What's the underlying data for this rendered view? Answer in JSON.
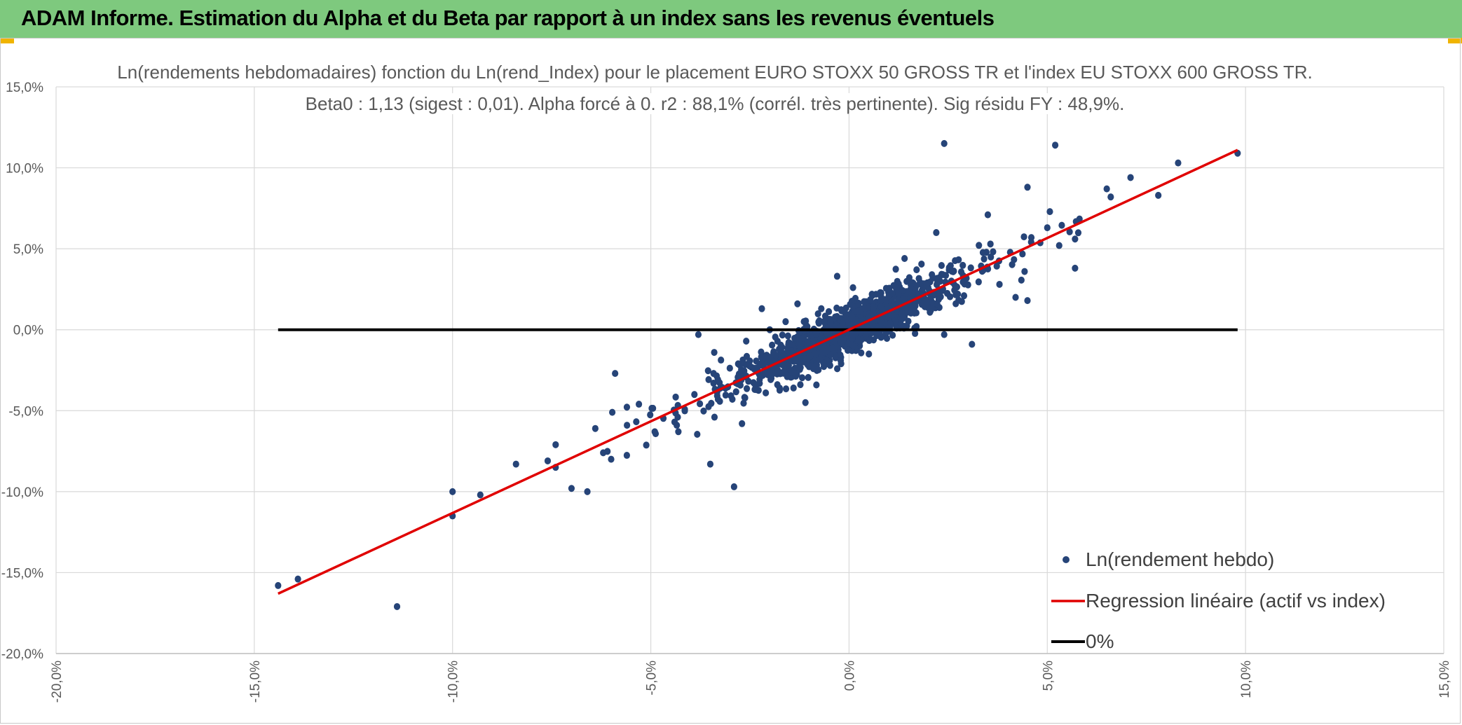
{
  "header": {
    "title": "ADAM Informe. Estimation du Alpha et du Beta par rapport à un index sans les revenus éventuels"
  },
  "colors": {
    "banner": "#7ec97e",
    "points": "#264478",
    "regression": "#e00000",
    "zero_line": "#000000",
    "grid": "#d9d9d9"
  },
  "chart_data": {
    "type": "scatter",
    "title": "Ln(rendements hebdomadaires) fonction du Ln(rend_Index) pour le placement EURO STOXX 50 GROSS TR et l'index EU STOXX 600 GROSS TR.",
    "subtitle": "Beta0 : 1,13 (sigest : 0,01). Alpha forcé à 0. r2 : 88,1% (corrél. très pertinente). Sig résidu FY : 48,9%.",
    "xlim": [
      -20,
      15
    ],
    "ylim": [
      -20,
      15
    ],
    "x_ticks": [
      -20,
      -15,
      -10,
      -5,
      0,
      5,
      10,
      15
    ],
    "x_tick_labels": [
      "-20,0%",
      "-15,0%",
      "-10,0%",
      "-5,0%",
      "0,0%",
      "5,0%",
      "10,0%",
      "15,0%"
    ],
    "y_ticks": [
      15,
      10,
      5,
      0,
      -5,
      -10,
      -15,
      -20
    ],
    "y_tick_labels": [
      "15,0%",
      "10,0%",
      "5,0%",
      "0,0%",
      "-5,0%",
      "-10,0%",
      "-15,0%",
      "-20,0%"
    ],
    "grid": true,
    "legend_position": "bottom-right",
    "series": [
      {
        "name": "Ln(rendement hebdo)",
        "kind": "scatter",
        "beta": 1.13,
        "cloud_count": 1500,
        "cloud_x_sd": 1.1,
        "cloud_resid_sd": 0.6,
        "points": [
          [
            -14.4,
            -15.8
          ],
          [
            -13.9,
            -15.4
          ],
          [
            -11.4,
            -17.1
          ],
          [
            -10.0,
            -10.0
          ],
          [
            -10.0,
            -11.5
          ],
          [
            -9.3,
            -10.2
          ],
          [
            -8.4,
            -8.3
          ],
          [
            -7.6,
            -8.1
          ],
          [
            -7.4,
            -7.1
          ],
          [
            -7.4,
            -8.5
          ],
          [
            -7.0,
            -9.8
          ],
          [
            -6.6,
            -10.0
          ],
          [
            -6.4,
            -6.1
          ],
          [
            -6.2,
            -7.6
          ],
          [
            -6.0,
            -8.0
          ],
          [
            -5.9,
            -2.7
          ],
          [
            -5.6,
            -5.9
          ],
          [
            -5.3,
            -4.6
          ],
          [
            -4.9,
            -6.3
          ],
          [
            -4.4,
            -5.7
          ],
          [
            -3.9,
            -4.0
          ],
          [
            -3.8,
            -0.3
          ],
          [
            -3.5,
            -8.3
          ],
          [
            -3.4,
            -1.4
          ],
          [
            -2.9,
            -9.7
          ],
          [
            -2.7,
            -5.8
          ],
          [
            -2.2,
            1.3
          ],
          [
            -2.1,
            -3.9
          ],
          [
            -2.0,
            0.0
          ],
          [
            -1.8,
            -2.6
          ],
          [
            -1.6,
            0.5
          ],
          [
            -1.4,
            -3.6
          ],
          [
            -1.3,
            1.6
          ],
          [
            -1.1,
            -4.5
          ],
          [
            -0.9,
            -2.4
          ],
          [
            -0.7,
            1.3
          ],
          [
            -0.3,
            3.3
          ],
          [
            -0.2,
            -2.1
          ],
          [
            0.1,
            2.6
          ],
          [
            0.5,
            -1.5
          ],
          [
            0.8,
            1.8
          ],
          [
            1.2,
            0.1
          ],
          [
            1.4,
            4.4
          ],
          [
            1.6,
            2.9
          ],
          [
            1.7,
            0.2
          ],
          [
            2.2,
            6.0
          ],
          [
            2.4,
            11.5
          ],
          [
            2.4,
            -0.3
          ],
          [
            2.9,
            2.1
          ],
          [
            3.1,
            -0.9
          ],
          [
            3.5,
            7.1
          ],
          [
            4.2,
            2.0
          ],
          [
            4.5,
            1.8
          ],
          [
            4.5,
            8.8
          ],
          [
            5.0,
            6.3
          ],
          [
            5.2,
            11.4
          ],
          [
            5.3,
            5.2
          ],
          [
            5.7,
            3.8
          ],
          [
            5.7,
            5.6
          ],
          [
            6.5,
            8.7
          ],
          [
            6.6,
            8.2
          ],
          [
            7.1,
            9.4
          ],
          [
            7.8,
            8.3
          ],
          [
            8.3,
            10.3
          ],
          [
            9.8,
            10.9
          ]
        ]
      },
      {
        "name": "Regression linéaire (actif vs index)",
        "kind": "line",
        "x": [
          -14.4,
          9.8
        ],
        "y": [
          -16.3,
          11.1
        ]
      },
      {
        "name": "0%",
        "kind": "line",
        "x": [
          -14.4,
          9.8
        ],
        "y": [
          0,
          0
        ]
      }
    ]
  }
}
